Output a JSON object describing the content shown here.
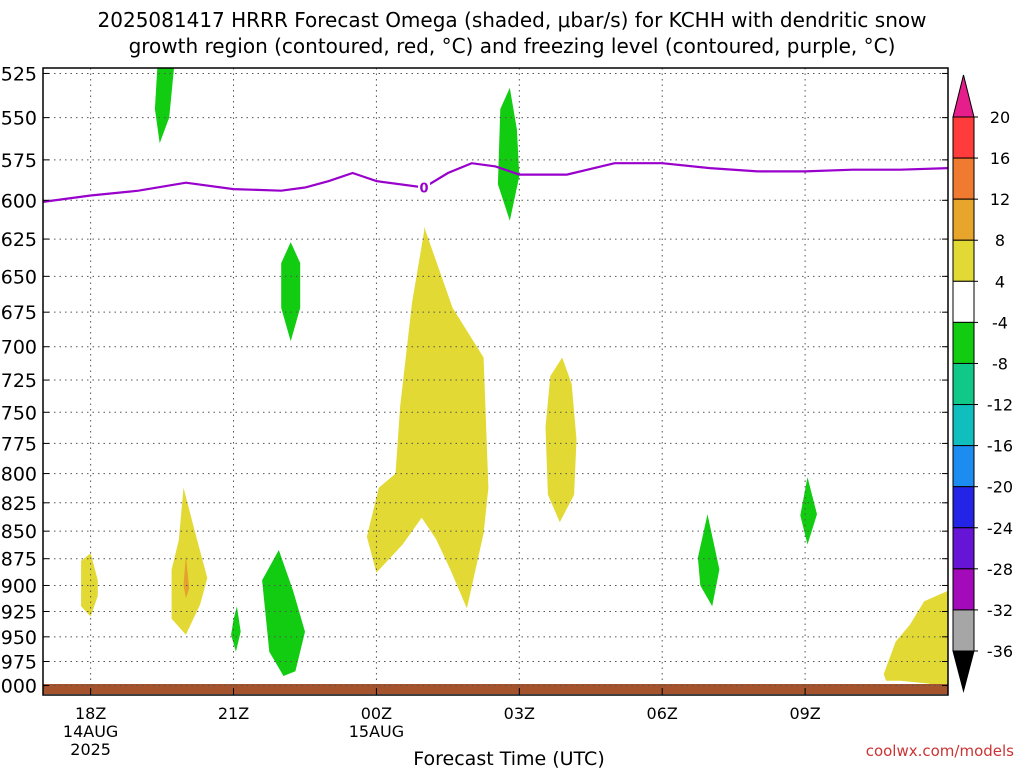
{
  "title_line1": "2025081417 HRRR Forecast Omega (shaded, μbar/s) for KCHH with dendritic snow",
  "title_line2": "growth region (contoured, red, °C) and freezing level (contoured, purple, °C)",
  "credit": "coolwx.com/models",
  "chart_data": {
    "type": "heatmap",
    "title": "2025081417 HRRR Forecast Omega (shaded, μbar/s) for KCHH with dendritic snow growth region (contoured, red, °C) and freezing level (contoured, purple, °C)",
    "xlabel": "Forecast Time (UTC)",
    "ylabel": "",
    "x_unit": "hours from 2025-08-14 17Z",
    "xlim": [
      0,
      19
    ],
    "ylim": [
      1010,
      522
    ],
    "y_scale": "log-pressure",
    "grid": true,
    "x_ticks": [
      {
        "x": 1,
        "label": "18Z",
        "sub1": "14AUG",
        "sub2": "2025"
      },
      {
        "x": 4,
        "label": "21Z",
        "sub1": "",
        "sub2": ""
      },
      {
        "x": 7,
        "label": "00Z",
        "sub1": "15AUG",
        "sub2": ""
      },
      {
        "x": 10,
        "label": "03Z",
        "sub1": "",
        "sub2": ""
      },
      {
        "x": 13,
        "label": "06Z",
        "sub1": "",
        "sub2": ""
      },
      {
        "x": 16,
        "label": "09Z",
        "sub1": "",
        "sub2": ""
      }
    ],
    "y_ticks": [
      525,
      550,
      575,
      600,
      625,
      650,
      675,
      700,
      725,
      750,
      775,
      800,
      825,
      850,
      875,
      900,
      925,
      950,
      975,
      1000
    ],
    "freezing_level": {
      "label": "0",
      "label_x": 8.0,
      "color": "#9900cc",
      "points": [
        [
          0,
          601
        ],
        [
          1,
          597
        ],
        [
          2,
          594
        ],
        [
          3,
          589
        ],
        [
          4,
          593
        ],
        [
          5,
          594
        ],
        [
          5.5,
          592
        ],
        [
          6,
          588
        ],
        [
          6.5,
          583
        ],
        [
          7,
          588
        ],
        [
          8,
          592
        ],
        [
          8.5,
          583
        ],
        [
          9,
          577
        ],
        [
          9.5,
          579
        ],
        [
          10,
          584
        ],
        [
          11,
          584
        ],
        [
          12,
          577
        ],
        [
          13,
          577
        ],
        [
          14,
          580
        ],
        [
          15,
          582
        ],
        [
          16,
          582
        ],
        [
          17,
          581
        ],
        [
          18,
          581
        ],
        [
          19,
          580
        ]
      ]
    },
    "omega_regions": [
      {
        "level": "4 to 8",
        "color": "#e2d935",
        "points": [
          [
            0.8,
            877
          ],
          [
            1.0,
            870
          ],
          [
            1.15,
            895
          ],
          [
            1.15,
            910
          ],
          [
            1.0,
            930
          ],
          [
            0.8,
            920
          ]
        ]
      },
      {
        "level": "4 to 8",
        "color": "#e2d935",
        "points": [
          [
            2.7,
            885
          ],
          [
            2.85,
            858
          ],
          [
            2.95,
            812
          ],
          [
            3.2,
            852
          ],
          [
            3.45,
            893
          ],
          [
            3.3,
            918
          ],
          [
            3.0,
            948
          ],
          [
            2.7,
            932
          ]
        ]
      },
      {
        "level": "8 to 12",
        "color": "#e5a12d",
        "points": [
          [
            2.95,
            900
          ],
          [
            3.0,
            872
          ],
          [
            3.07,
            903
          ],
          [
            3.0,
            912
          ]
        ]
      },
      {
        "level": "4 to 8",
        "color": "#e2d935",
        "points": [
          [
            8,
            617
          ],
          [
            8.6,
            672
          ],
          [
            9.25,
            708
          ],
          [
            9.35,
            812
          ],
          [
            9.25,
            852
          ],
          [
            8.9,
            922
          ],
          [
            8.55,
            885
          ],
          [
            8.25,
            857
          ],
          [
            7.95,
            838
          ],
          [
            7.55,
            862
          ],
          [
            7.0,
            888
          ],
          [
            6.8,
            855
          ],
          [
            7.05,
            812
          ],
          [
            7.4,
            800
          ],
          [
            7.5,
            745
          ],
          [
            7.75,
            668
          ],
          [
            8,
            620
          ]
        ]
      },
      {
        "level": "4 to 8",
        "color": "#e2d935",
        "points": [
          [
            10.65,
            722
          ],
          [
            10.9,
            708
          ],
          [
            11.1,
            728
          ],
          [
            11.2,
            772
          ],
          [
            11.15,
            818
          ],
          [
            10.85,
            842
          ],
          [
            10.6,
            818
          ],
          [
            10.55,
            762
          ]
        ]
      },
      {
        "level": "4 to 8",
        "color": "#e2d935",
        "points": [
          [
            17.65,
            988
          ],
          [
            17.9,
            955
          ],
          [
            18.2,
            938
          ],
          [
            18.5,
            915
          ],
          [
            19,
            905
          ],
          [
            19,
            1005
          ],
          [
            18.6,
            998
          ],
          [
            18.0,
            995
          ],
          [
            17.7,
            995
          ]
        ]
      },
      {
        "level": "-8 to -4",
        "color": "#11cc11",
        "points": [
          [
            2.4,
            522
          ],
          [
            2.75,
            522
          ],
          [
            2.65,
            550
          ],
          [
            2.45,
            565
          ],
          [
            2.35,
            545
          ]
        ]
      },
      {
        "level": "-8 to -4",
        "color": "#11cc11",
        "points": [
          [
            5.0,
            641
          ],
          [
            5.2,
            627
          ],
          [
            5.4,
            641
          ],
          [
            5.4,
            672
          ],
          [
            5.2,
            696
          ],
          [
            5.0,
            672
          ]
        ]
      },
      {
        "level": "-8 to -4",
        "color": "#11cc11",
        "points": [
          [
            9.6,
            545
          ],
          [
            9.8,
            533
          ],
          [
            9.95,
            557
          ],
          [
            10.0,
            585
          ],
          [
            9.8,
            613
          ],
          [
            9.55,
            590
          ]
        ]
      },
      {
        "level": "-8 to -4",
        "color": "#11cc11",
        "points": [
          [
            4.0,
            933
          ],
          [
            4.07,
            920
          ],
          [
            4.15,
            945
          ],
          [
            4.05,
            965
          ],
          [
            3.95,
            948
          ]
        ]
      },
      {
        "level": "-8 to -4",
        "color": "#11cc11",
        "points": [
          [
            4.6,
            895
          ],
          [
            4.95,
            867
          ],
          [
            5.25,
            905
          ],
          [
            5.5,
            945
          ],
          [
            5.3,
            985
          ],
          [
            5.05,
            990
          ],
          [
            4.75,
            965
          ]
        ]
      },
      {
        "level": "-8 to -4",
        "color": "#11cc11",
        "points": [
          [
            13.75,
            874
          ],
          [
            13.95,
            835
          ],
          [
            14.2,
            885
          ],
          [
            14.05,
            920
          ],
          [
            13.8,
            900
          ]
        ]
      },
      {
        "level": "-8 to -4",
        "color": "#11cc11",
        "points": [
          [
            15.9,
            836
          ],
          [
            16.05,
            803
          ],
          [
            16.25,
            835
          ],
          [
            16.05,
            862
          ]
        ]
      }
    ],
    "surface_color": "#a4532c",
    "colorbar": {
      "labels": [
        "20",
        "16",
        "12",
        "8",
        "4",
        "-4",
        "-8",
        "-12",
        "-16",
        "-20",
        "-24",
        "-28",
        "-32",
        "-36"
      ],
      "colors": [
        "#ff3b3b",
        "#f07a30",
        "#e8a52c",
        "#e2d935",
        "#ffffff",
        "#11cc11",
        "#10c887",
        "#10bebe",
        "#1c8cf0",
        "#2424e6",
        "#6614d6",
        "#a20aba",
        "#a6a6a6"
      ],
      "top_arrow_color": "#e51e8c",
      "bottom_arrow_color": "#000000"
    }
  }
}
